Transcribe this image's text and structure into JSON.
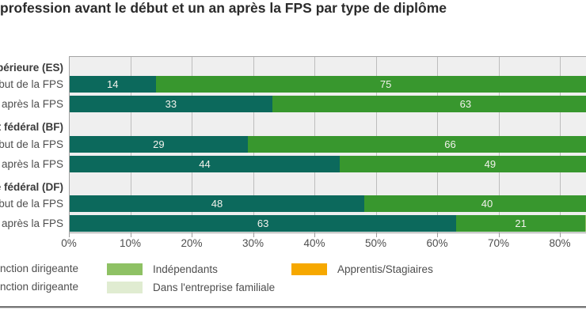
{
  "title": "profession avant le début et un an après la FPS par type de diplôme",
  "chart_data": {
    "type": "bar",
    "orientation": "horizontal",
    "stacked": true,
    "title": "profession avant le début et un an après la FPS par type de diplôme",
    "x_ticks": [
      "0%",
      "10%",
      "20%",
      "30%",
      "40%",
      "50%",
      "60%",
      "70%",
      "80%"
    ],
    "x_axis_unit": "percent",
    "x_visible_range": [
      0,
      84
    ],
    "grid": true,
    "legend_position": "bottom",
    "series": [
      {
        "key": "fonction_dirigeante_1",
        "legend_label": "nction dirigeante",
        "color": "#0c695c"
      },
      {
        "key": "fonction_dirigeante_2",
        "legend_label": "nction dirigeante",
        "color": "#38972e"
      },
      {
        "key": "independants",
        "legend_label": "Indépendants",
        "color": "#8ec164"
      },
      {
        "key": "entreprise_familiale",
        "legend_label": "Dans l'entreprise familiale",
        "color": "#e0ecd1"
      },
      {
        "key": "apprentis_stagiaires",
        "legend_label": "Apprentis/Stagiaires",
        "color": "#f6a800"
      }
    ],
    "groups": [
      {
        "label": "périeure (ES)",
        "bars": [
          {
            "label": "but de la FPS",
            "segments": [
              {
                "series": "fonction_dirigeante_1",
                "value": 14
              },
              {
                "series": "fonction_dirigeante_2",
                "value": 75
              }
            ]
          },
          {
            "label": "après la FPS",
            "segments": [
              {
                "series": "fonction_dirigeante_1",
                "value": 33
              },
              {
                "series": "fonction_dirigeante_2",
                "value": 63
              }
            ]
          }
        ]
      },
      {
        "label": "t fédéral (BF)",
        "bars": [
          {
            "label": "but de la FPS",
            "segments": [
              {
                "series": "fonction_dirigeante_1",
                "value": 29
              },
              {
                "series": "fonction_dirigeante_2",
                "value": 66
              }
            ]
          },
          {
            "label": "après la FPS",
            "segments": [
              {
                "series": "fonction_dirigeante_1",
                "value": 44
              },
              {
                "series": "fonction_dirigeante_2",
                "value": 49
              }
            ]
          }
        ]
      },
      {
        "label": "e fédéral (DF)",
        "bars": [
          {
            "label": "but de la FPS",
            "segments": [
              {
                "series": "fonction_dirigeante_1",
                "value": 48
              },
              {
                "series": "fonction_dirigeante_2",
                "value": 40
              }
            ]
          },
          {
            "label": "après la FPS",
            "segments": [
              {
                "series": "fonction_dirigeante_1",
                "value": 63
              },
              {
                "series": "fonction_dirigeante_2",
                "value": 21
              },
              {
                "series": "independants",
                "value": null,
                "clipped": true
              }
            ]
          }
        ]
      }
    ]
  },
  "legend": [
    {
      "label": "nction dirigeante",
      "color": null
    },
    {
      "label": "Indépendants",
      "color": "#8ec164"
    },
    {
      "label": "Apprentis/Stagiaires",
      "color": "#f6a800"
    },
    {
      "label": "nction dirigeante",
      "color": null
    },
    {
      "label": "Dans l'entreprise familiale",
      "color": "#e0ecd1"
    }
  ],
  "colors": {
    "plot_background": "#efefef",
    "gridline": "#bdbdbd",
    "plot_border": "#a3a3a3",
    "bar_value_text": "#f2f2ec",
    "title_text": "#2b2b2b",
    "label_text": "#4e4e4e"
  }
}
